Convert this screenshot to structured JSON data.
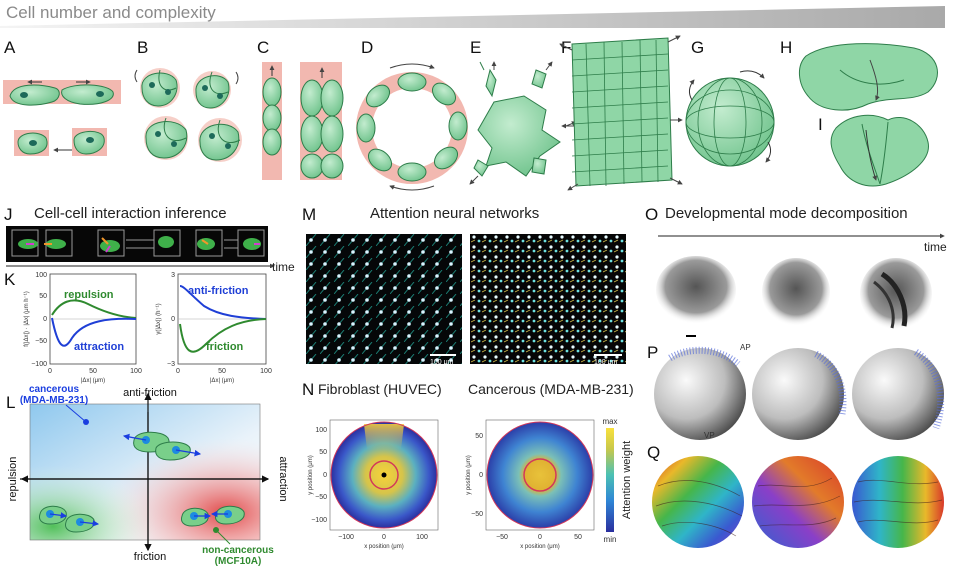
{
  "header": {
    "title": "Cell number and complexity"
  },
  "panel_labels": {
    "A": "A",
    "B": "B",
    "C": "C",
    "D": "D",
    "E": "E",
    "F": "F",
    "G": "G",
    "H": "H",
    "I": "I",
    "J": "J",
    "K": "K",
    "L": "L",
    "M": "M",
    "N": "N",
    "O": "O",
    "P": "P",
    "Q": "Q"
  },
  "section_titles": {
    "interaction": "Cell-cell interaction inference",
    "attention": "Attention neural networks",
    "developmental": "Developmental mode decomposition"
  },
  "time_labels": {
    "j_time": "time",
    "o_time": "time"
  },
  "k_plots": {
    "left": {
      "ylabel": "f(|Δx|) · |Δx| (μm h⁻¹)",
      "xlabel": "|Δx| (μm)",
      "yticks": [
        "100",
        "50",
        "0",
        "−50",
        "−100"
      ],
      "xticks": [
        "0",
        "50",
        "100"
      ],
      "repulsion": "repulsion",
      "attraction": "attraction"
    },
    "right": {
      "ylabel": "γ(|Δx|) (h⁻¹)",
      "xlabel": "|Δx| (μm)",
      "yticks": [
        "3",
        "0",
        "−3"
      ],
      "xticks": [
        "0",
        "50",
        "100"
      ],
      "anti_friction": "anti-friction",
      "friction": "friction"
    }
  },
  "l_map": {
    "top": "anti-friction",
    "bottom": "friction",
    "left": "repulsion",
    "right": "attraction",
    "cancerous_line1": "cancerous",
    "cancerous_line2": "(MDA-MB-231)",
    "noncancerous_line1": "non-cancerous",
    "noncancerous_line2": "(MCF10A)"
  },
  "m_panel": {
    "scalebar_left": "100 μm",
    "scalebar_right": "100 μm"
  },
  "n_panel": {
    "left_title": "Fibroblast (HUVEC)",
    "right_title": "Cancerous (MDA-MB-231)",
    "left_yticks": [
      "100",
      "50",
      "0",
      "−50",
      "−100"
    ],
    "left_xticks": [
      "−100",
      "0",
      "100"
    ],
    "right_yticks": [
      "50",
      "0",
      "−50"
    ],
    "right_xticks": [
      "−50",
      "0",
      "50"
    ],
    "ylabel": "y position (μm)",
    "xlabel": "x position (μm)",
    "cbar_label": "Attention weight",
    "cbar_max": "max",
    "cbar_min": "min"
  },
  "p_panel": {
    "ap": "AP",
    "vp": "VP"
  },
  "colors": {
    "cell_fill": "#8fd6a6",
    "cell_stroke": "#2e7d4a",
    "pink": "#f2b8b0",
    "blue": "#1f3fd6",
    "green": "#2f8a2f",
    "cancer_blue": "#1a3ee0"
  }
}
